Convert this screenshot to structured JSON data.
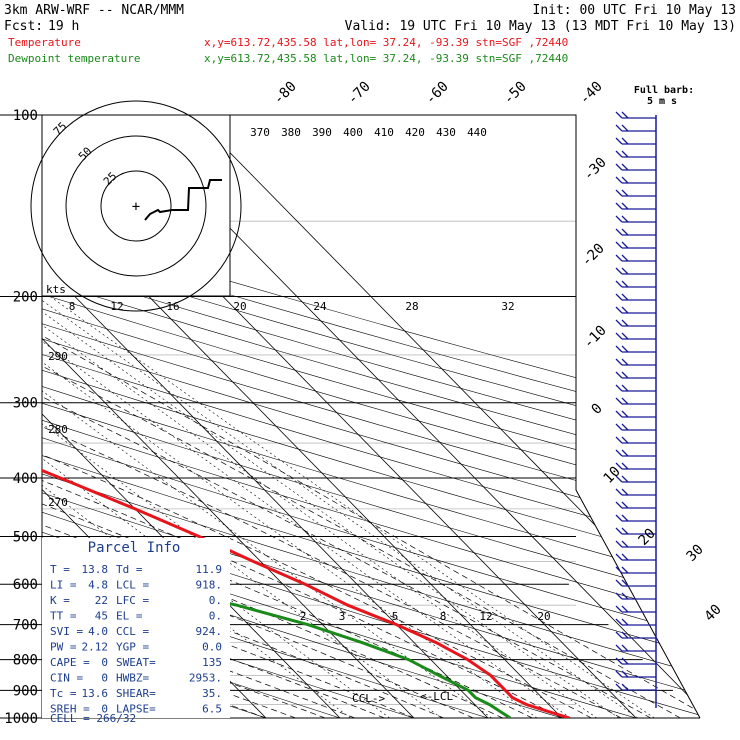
{
  "header": {
    "model": "3km ARW-WRF -- NCAR/MMM",
    "init": "Init: 00 UTC Fri 10 May 13",
    "fcst_label": "Fcst:",
    "fcst_value": "19 h",
    "valid": "Valid: 19 UTC Fri 10 May 13 (13 MDT Fri 10 May 13)",
    "temp_label": "Temperature",
    "dew_label": "Dewpoint temperature",
    "location_line": "x,y=613.72,435.58   lat,lon= 37.24, -93.39   stn=SGF ,72440"
  },
  "colors": {
    "temperature": "#e8141b",
    "dewpoint": "#1a8a1a",
    "wind": "#1a1a9a",
    "parcel_text": "#1c3d8c"
  },
  "chart_data": {
    "type": "line",
    "title": "",
    "pressure_ticks": [
      100,
      200,
      300,
      400,
      500,
      600,
      700,
      800,
      900,
      1000
    ],
    "temp_isotherm_labels": [
      "-80",
      "-70",
      "-60",
      "-50",
      "-40",
      "-30",
      "-20",
      "-10",
      "0",
      "10",
      "20",
      "30",
      "40"
    ],
    "theta_labels": [
      "370",
      "380",
      "390",
      "400",
      "410",
      "420",
      "430",
      "440"
    ],
    "mixing_ratio_labels_upper": [
      "8",
      "12",
      "16",
      "20",
      "24",
      "28",
      "32"
    ],
    "mixing_ratio_labels_lower": [
      "2",
      "3",
      "5",
      "8",
      "12",
      "20"
    ],
    "theta_left_labels": [
      "290",
      "280",
      "270"
    ],
    "series": [
      {
        "name": "Temperature",
        "points": [
          [
            1000,
            21
          ],
          [
            975,
            19
          ],
          [
            950,
            17
          ],
          [
            925,
            16
          ],
          [
            900,
            16
          ],
          [
            850,
            16
          ],
          [
            800,
            15
          ],
          [
            750,
            13
          ],
          [
            700,
            10
          ],
          [
            650,
            6
          ],
          [
            600,
            3
          ],
          [
            550,
            -1
          ],
          [
            500,
            -5
          ],
          [
            450,
            -10
          ],
          [
            400,
            -16
          ],
          [
            350,
            -23
          ],
          [
            300,
            -31
          ],
          [
            275,
            -36
          ],
          [
            250,
            -41
          ],
          [
            225,
            -46
          ],
          [
            200,
            -51
          ],
          [
            185,
            -53
          ],
          [
            170,
            -52
          ],
          [
            155,
            -54
          ],
          [
            140,
            -55
          ],
          [
            130,
            -59
          ],
          [
            120,
            -62
          ],
          [
            110,
            -64
          ],
          [
            100,
            -66
          ]
        ]
      },
      {
        "name": "Dewpoint temperature",
        "points": [
          [
            1000,
            13
          ],
          [
            975,
            12.5
          ],
          [
            950,
            12
          ],
          [
            925,
            11
          ],
          [
            900,
            11
          ],
          [
            850,
            9
          ],
          [
            800,
            7
          ],
          [
            750,
            3
          ],
          [
            700,
            -2
          ],
          [
            650,
            -9
          ],
          [
            600,
            -19
          ],
          [
            550,
            -32
          ],
          [
            500,
            -42
          ],
          [
            450,
            -47
          ],
          [
            400,
            -50
          ],
          [
            350,
            -50
          ],
          [
            300,
            -48
          ],
          [
            275,
            -54
          ],
          [
            250,
            -56
          ],
          [
            225,
            -58
          ],
          [
            200,
            -59
          ],
          [
            190,
            -59
          ],
          [
            180,
            -60
          ],
          [
            170,
            -63
          ],
          [
            160,
            -68
          ],
          [
            150,
            -72
          ],
          [
            140,
            -76
          ],
          [
            130,
            -78
          ],
          [
            120,
            -81
          ],
          [
            110,
            -83
          ],
          [
            100,
            -85
          ]
        ]
      }
    ],
    "lcl_pressure": 918,
    "ccl_pressure": 924,
    "wind_barbs_label": "Full barb:",
    "wind_barbs_unit": "5 m s",
    "hodograph": {
      "unit": "kts",
      "ring_labels": [
        "25",
        "50",
        "75"
      ]
    }
  },
  "parcel_info": {
    "title": "Parcel Info",
    "rows": [
      {
        "k1": "T  =",
        "v1": "13.8",
        "k2": "Td =",
        "v2": "11.9"
      },
      {
        "k1": "LI =",
        "v1": "4.8",
        "k2": "LCL =",
        "v2": "918."
      },
      {
        "k1": "K  =",
        "v1": "22",
        "k2": "LFC =",
        "v2": "0."
      },
      {
        "k1": "TT =",
        "v1": "45",
        "k2": "EL  =",
        "v2": "0."
      },
      {
        "k1": "SVI =",
        "v1": "4.0",
        "k2": "CCL =",
        "v2": "924."
      },
      {
        "k1": "PW =",
        "v1": "2.12",
        "k2": "YGP =",
        "v2": "0.0"
      },
      {
        "k1": "CAPE =",
        "v1": "0",
        "k2": "SWEAT=",
        "v2": "135"
      },
      {
        "k1": "CIN =",
        "v1": "0",
        "k2": "HWBZ=",
        "v2": "2953."
      },
      {
        "k1": "Tc =",
        "v1": "13.6",
        "k2": "SHEAR=",
        "v2": "35."
      },
      {
        "k1": "SREH =",
        "v1": "0",
        "k2": "LAPSE=",
        "v2": "6.5"
      }
    ],
    "cell": "CELL = 266/32"
  },
  "markers": {
    "ccl": "CCL->",
    "lcl": "<-LCL"
  }
}
